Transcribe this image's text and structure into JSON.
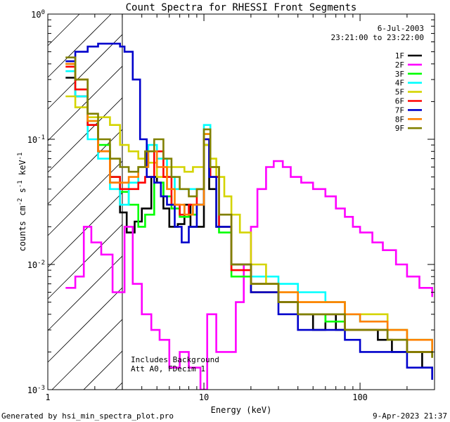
{
  "chart_data": {
    "type": "line",
    "title": "Count Spectra for RHESSI Front Segments",
    "xlabel": "Energy (keV)",
    "ylabel_parts": [
      "counts cm",
      "-2",
      " s",
      "-1",
      " keV",
      "-1"
    ],
    "x_scale": "log",
    "y_scale": "log",
    "xlim": [
      1,
      300
    ],
    "ylim": [
      0.001,
      1
    ],
    "x_ticks": [
      {
        "v": 1,
        "label": "1"
      },
      {
        "v": 10,
        "label": "10"
      },
      {
        "v": 100,
        "label": "100"
      }
    ],
    "y_ticks": [
      {
        "v": 1,
        "base": "10",
        "exp": "0"
      },
      {
        "v": 0.1,
        "base": "10",
        "exp": "-1"
      },
      {
        "v": 0.01,
        "base": "10",
        "exp": "-2"
      },
      {
        "v": 0.001,
        "base": "10",
        "exp": "-3"
      }
    ],
    "date_label": "6-Jul-2003",
    "time_range_label": "23:21:00 to 23:22:00",
    "annotation_lines": [
      "Includes Background",
      "Att A0, FDecim 1"
    ],
    "attenuator_cutoff_kev": 3,
    "legend_placement": "top-right",
    "series": [
      {
        "name": "1F",
        "color": "#000000",
        "points": [
          [
            1.3,
            0.31
          ],
          [
            1.5,
            0.22
          ],
          [
            1.8,
            0.13
          ],
          [
            2.1,
            0.08
          ],
          [
            2.5,
            0.045
          ],
          [
            2.9,
            0.026
          ],
          [
            3.2,
            0.018
          ],
          [
            3.6,
            0.022
          ],
          [
            4.0,
            0.028
          ],
          [
            4.6,
            0.05
          ],
          [
            5.0,
            0.045
          ],
          [
            5.5,
            0.028
          ],
          [
            6.0,
            0.02
          ],
          [
            6.8,
            0.021
          ],
          [
            7.5,
            0.03
          ],
          [
            8.2,
            0.02
          ],
          [
            9.2,
            0.02
          ],
          [
            10.0,
            0.09
          ],
          [
            10.8,
            0.04
          ],
          [
            12.0,
            0.02
          ],
          [
            15.0,
            0.01
          ],
          [
            20.0,
            0.007
          ],
          [
            30.0,
            0.005
          ],
          [
            40.0,
            0.004
          ],
          [
            50.0,
            0.003
          ],
          [
            60.0,
            0.004
          ],
          [
            70.0,
            0.003
          ],
          [
            80.0,
            0.003
          ],
          [
            100.0,
            0.003
          ],
          [
            130.0,
            0.0025
          ],
          [
            160.0,
            0.002
          ],
          [
            200.0,
            0.002
          ],
          [
            250.0,
            0.0015
          ],
          [
            290.0,
            0.0012
          ]
        ]
      },
      {
        "name": "2F",
        "color": "#ff00ff",
        "points": [
          [
            1.3,
            0.0065
          ],
          [
            1.5,
            0.008
          ],
          [
            1.7,
            0.02
          ],
          [
            1.9,
            0.015
          ],
          [
            2.2,
            0.012
          ],
          [
            2.6,
            0.006
          ],
          [
            3.1,
            0.02
          ],
          [
            3.5,
            0.007
          ],
          [
            4.0,
            0.004
          ],
          [
            4.6,
            0.003
          ],
          [
            5.2,
            0.0025
          ],
          [
            6.0,
            0.0015
          ],
          [
            7.0,
            0.002
          ],
          [
            8.0,
            0.0015
          ],
          [
            9.5,
            0.001
          ],
          [
            10.5,
            0.004
          ],
          [
            12.0,
            0.002
          ],
          [
            14.0,
            0.002
          ],
          [
            16.0,
            0.005
          ],
          [
            18.0,
            0.01
          ],
          [
            20.0,
            0.02
          ],
          [
            22.0,
            0.04
          ],
          [
            25.0,
            0.06
          ],
          [
            28.0,
            0.067
          ],
          [
            32.0,
            0.06
          ],
          [
            36.0,
            0.05
          ],
          [
            42.0,
            0.045
          ],
          [
            50.0,
            0.04
          ],
          [
            60.0,
            0.035
          ],
          [
            70.0,
            0.028
          ],
          [
            80.0,
            0.024
          ],
          [
            90.0,
            0.02
          ],
          [
            100.0,
            0.018
          ],
          [
            120.0,
            0.015
          ],
          [
            140.0,
            0.013
          ],
          [
            170.0,
            0.01
          ],
          [
            200.0,
            0.008
          ],
          [
            240.0,
            0.0065
          ],
          [
            290.0,
            0.0055
          ]
        ]
      },
      {
        "name": "3F",
        "color": "#00ff00",
        "points": [
          [
            1.3,
            0.4
          ],
          [
            1.5,
            0.25
          ],
          [
            1.8,
            0.14
          ],
          [
            2.1,
            0.09
          ],
          [
            2.5,
            0.05
          ],
          [
            2.9,
            0.038
          ],
          [
            3.3,
            0.03
          ],
          [
            3.8,
            0.02
          ],
          [
            4.2,
            0.025
          ],
          [
            4.8,
            0.045
          ],
          [
            5.5,
            0.035
          ],
          [
            6.2,
            0.028
          ],
          [
            7.0,
            0.024
          ],
          [
            8.0,
            0.025
          ],
          [
            9.0,
            0.03
          ],
          [
            10.0,
            0.11
          ],
          [
            11.0,
            0.05
          ],
          [
            12.5,
            0.018
          ],
          [
            15.0,
            0.008
          ],
          [
            20.0,
            0.006
          ],
          [
            30.0,
            0.005
          ],
          [
            40.0,
            0.004
          ],
          [
            60.0,
            0.0035
          ],
          [
            80.0,
            0.003
          ],
          [
            100.0,
            0.003
          ],
          [
            150.0,
            0.0025
          ],
          [
            200.0,
            0.002
          ],
          [
            290.0,
            0.0018
          ]
        ]
      },
      {
        "name": "4F",
        "color": "#00ffff",
        "points": [
          [
            1.3,
            0.35
          ],
          [
            1.5,
            0.22
          ],
          [
            1.8,
            0.1
          ],
          [
            2.1,
            0.07
          ],
          [
            2.5,
            0.04
          ],
          [
            2.9,
            0.03
          ],
          [
            3.3,
            0.045
          ],
          [
            3.8,
            0.06
          ],
          [
            4.4,
            0.09
          ],
          [
            5.0,
            0.07
          ],
          [
            5.8,
            0.05
          ],
          [
            6.5,
            0.04
          ],
          [
            7.5,
            0.04
          ],
          [
            8.5,
            0.04
          ],
          [
            10.0,
            0.13
          ],
          [
            11.0,
            0.06
          ],
          [
            12.5,
            0.02
          ],
          [
            15.0,
            0.01
          ],
          [
            20.0,
            0.008
          ],
          [
            30.0,
            0.007
          ],
          [
            40.0,
            0.006
          ],
          [
            60.0,
            0.005
          ],
          [
            80.0,
            0.004
          ],
          [
            100.0,
            0.0035
          ],
          [
            150.0,
            0.003
          ],
          [
            200.0,
            0.0025
          ],
          [
            290.0,
            0.002
          ]
        ]
      },
      {
        "name": "5F",
        "color": "#d4d400",
        "points": [
          [
            1.3,
            0.22
          ],
          [
            1.5,
            0.18
          ],
          [
            1.8,
            0.15
          ],
          [
            2.1,
            0.15
          ],
          [
            2.5,
            0.13
          ],
          [
            2.9,
            0.09
          ],
          [
            3.3,
            0.08
          ],
          [
            3.8,
            0.07
          ],
          [
            4.4,
            0.065
          ],
          [
            5.0,
            0.05
          ],
          [
            5.8,
            0.06
          ],
          [
            6.5,
            0.06
          ],
          [
            7.5,
            0.055
          ],
          [
            8.5,
            0.06
          ],
          [
            10.0,
            0.09
          ],
          [
            11.0,
            0.07
          ],
          [
            12.0,
            0.05
          ],
          [
            13.5,
            0.035
          ],
          [
            15.0,
            0.025
          ],
          [
            17.0,
            0.018
          ],
          [
            20.0,
            0.01
          ],
          [
            25.0,
            0.007
          ],
          [
            30.0,
            0.006
          ],
          [
            40.0,
            0.005
          ],
          [
            60.0,
            0.005
          ],
          [
            80.0,
            0.004
          ],
          [
            100.0,
            0.004
          ],
          [
            150.0,
            0.003
          ],
          [
            200.0,
            0.0025
          ],
          [
            290.0,
            0.002
          ]
        ]
      },
      {
        "name": "6F",
        "color": "#ff0000",
        "points": [
          [
            1.3,
            0.38
          ],
          [
            1.5,
            0.25
          ],
          [
            1.8,
            0.13
          ],
          [
            2.1,
            0.08
          ],
          [
            2.5,
            0.05
          ],
          [
            2.9,
            0.04
          ],
          [
            3.3,
            0.04
          ],
          [
            3.8,
            0.045
          ],
          [
            4.2,
            0.05
          ],
          [
            4.8,
            0.08
          ],
          [
            5.5,
            0.05
          ],
          [
            6.2,
            0.03
          ],
          [
            7.0,
            0.025
          ],
          [
            8.0,
            0.03
          ],
          [
            9.0,
            0.04
          ],
          [
            10.0,
            0.1
          ],
          [
            11.0,
            0.05
          ],
          [
            12.5,
            0.02
          ],
          [
            15.0,
            0.009
          ],
          [
            20.0,
            0.006
          ],
          [
            30.0,
            0.005
          ],
          [
            40.0,
            0.004
          ],
          [
            60.0,
            0.004
          ],
          [
            80.0,
            0.003
          ],
          [
            100.0,
            0.003
          ],
          [
            150.0,
            0.0025
          ],
          [
            200.0,
            0.002
          ],
          [
            290.0,
            0.0018
          ]
        ]
      },
      {
        "name": "7F",
        "color": "#0000cc",
        "points": [
          [
            1.3,
            0.42
          ],
          [
            1.5,
            0.5
          ],
          [
            1.8,
            0.55
          ],
          [
            2.1,
            0.58
          ],
          [
            2.5,
            0.58
          ],
          [
            2.9,
            0.55
          ],
          [
            3.1,
            0.5
          ],
          [
            3.5,
            0.3
          ],
          [
            3.9,
            0.1
          ],
          [
            4.3,
            0.05
          ],
          [
            4.8,
            0.045
          ],
          [
            5.3,
            0.035
          ],
          [
            5.8,
            0.03
          ],
          [
            6.5,
            0.02
          ],
          [
            7.2,
            0.015
          ],
          [
            8.0,
            0.02
          ],
          [
            9.0,
            0.03
          ],
          [
            10.0,
            0.1
          ],
          [
            10.8,
            0.05
          ],
          [
            12.0,
            0.02
          ],
          [
            15.0,
            0.01
          ],
          [
            20.0,
            0.006
          ],
          [
            30.0,
            0.004
          ],
          [
            40.0,
            0.003
          ],
          [
            60.0,
            0.003
          ],
          [
            80.0,
            0.0025
          ],
          [
            100.0,
            0.002
          ],
          [
            150.0,
            0.002
          ],
          [
            200.0,
            0.0015
          ],
          [
            290.0,
            0.0012
          ]
        ]
      },
      {
        "name": "8F",
        "color": "#ff8000",
        "points": [
          [
            1.3,
            0.4
          ],
          [
            1.5,
            0.3
          ],
          [
            1.8,
            0.14
          ],
          [
            2.1,
            0.08
          ],
          [
            2.5,
            0.045
          ],
          [
            2.9,
            0.045
          ],
          [
            3.3,
            0.05
          ],
          [
            3.8,
            0.06
          ],
          [
            4.4,
            0.08
          ],
          [
            5.0,
            0.06
          ],
          [
            5.8,
            0.04
          ],
          [
            6.5,
            0.03
          ],
          [
            7.5,
            0.025
          ],
          [
            8.5,
            0.03
          ],
          [
            10.0,
            0.11
          ],
          [
            11.0,
            0.06
          ],
          [
            12.5,
            0.025
          ],
          [
            15.0,
            0.01
          ],
          [
            20.0,
            0.007
          ],
          [
            30.0,
            0.006
          ],
          [
            40.0,
            0.005
          ],
          [
            60.0,
            0.005
          ],
          [
            80.0,
            0.004
          ],
          [
            100.0,
            0.0035
          ],
          [
            150.0,
            0.003
          ],
          [
            200.0,
            0.0025
          ],
          [
            290.0,
            0.002
          ]
        ]
      },
      {
        "name": "9F",
        "color": "#808000",
        "points": [
          [
            1.3,
            0.45
          ],
          [
            1.5,
            0.3
          ],
          [
            1.8,
            0.16
          ],
          [
            2.1,
            0.1
          ],
          [
            2.5,
            0.07
          ],
          [
            2.9,
            0.06
          ],
          [
            3.3,
            0.055
          ],
          [
            3.8,
            0.06
          ],
          [
            4.2,
            0.08
          ],
          [
            4.8,
            0.1
          ],
          [
            5.5,
            0.07
          ],
          [
            6.2,
            0.05
          ],
          [
            7.0,
            0.04
          ],
          [
            8.0,
            0.035
          ],
          [
            9.0,
            0.04
          ],
          [
            10.0,
            0.12
          ],
          [
            11.0,
            0.06
          ],
          [
            12.5,
            0.025
          ],
          [
            15.0,
            0.01
          ],
          [
            20.0,
            0.007
          ],
          [
            30.0,
            0.005
          ],
          [
            40.0,
            0.004
          ],
          [
            60.0,
            0.004
          ],
          [
            80.0,
            0.003
          ],
          [
            100.0,
            0.003
          ],
          [
            150.0,
            0.0025
          ],
          [
            200.0,
            0.002
          ],
          [
            290.0,
            0.0018
          ]
        ]
      }
    ]
  },
  "footer": {
    "generated_by": "Generated by hsi_min_spectra_plot.pro",
    "timestamp": "9-Apr-2023 21:37"
  }
}
